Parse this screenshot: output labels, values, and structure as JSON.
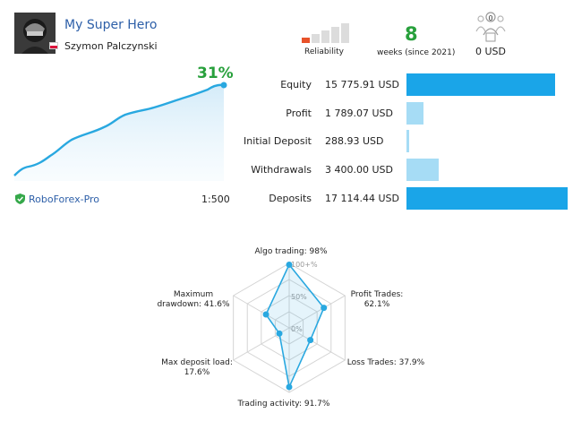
{
  "header": {
    "title": "My Super Hero",
    "owner": "Szymon Palczynski",
    "reliability_label": "Reliability",
    "reliability_level": 0.2,
    "weeks_value": "8",
    "weeks_label": "weeks (since 2021)",
    "subscribers_count": "0",
    "subscriptions_amount": "0 USD"
  },
  "growth": {
    "percent": "31%",
    "broker": "RoboForex-Pro",
    "leverage": "1:500",
    "line_color": "#29a8e0"
  },
  "metrics": [
    {
      "label": "Equity",
      "value": "15 775.91 USD",
      "amount": 15775.91,
      "color": "#1aa5e8"
    },
    {
      "label": "Profit",
      "value": "1 789.07 USD",
      "amount": 1789.07,
      "color": "#a6dcf5"
    },
    {
      "label": "Initial Deposit",
      "value": "288.93 USD",
      "amount": 288.93,
      "color": "#a6dcf5"
    },
    {
      "label": "Withdrawals",
      "value": "3 400.00 USD",
      "amount": 3400.0,
      "color": "#a6dcf5"
    },
    {
      "label": "Deposits",
      "value": "17 114.44 USD",
      "amount": 17114.44,
      "color": "#1aa5e8"
    }
  ],
  "radar": {
    "ticks": [
      "100+%",
      "50%",
      "0%"
    ],
    "axes": [
      {
        "label": "Algo trading: 98%",
        "value": 98
      },
      {
        "label": "Profit Trades:\n62.1%",
        "value": 62.1
      },
      {
        "label": "Loss Trades: 37.9%",
        "value": 37.9
      },
      {
        "label": "Trading activity: 91.7%",
        "value": 91.7
      },
      {
        "label": "Max deposit load:\n17.6%",
        "value": 17.6
      },
      {
        "label": "Maximum\ndrawdown: 41.6%",
        "value": 41.6
      }
    ]
  }
}
